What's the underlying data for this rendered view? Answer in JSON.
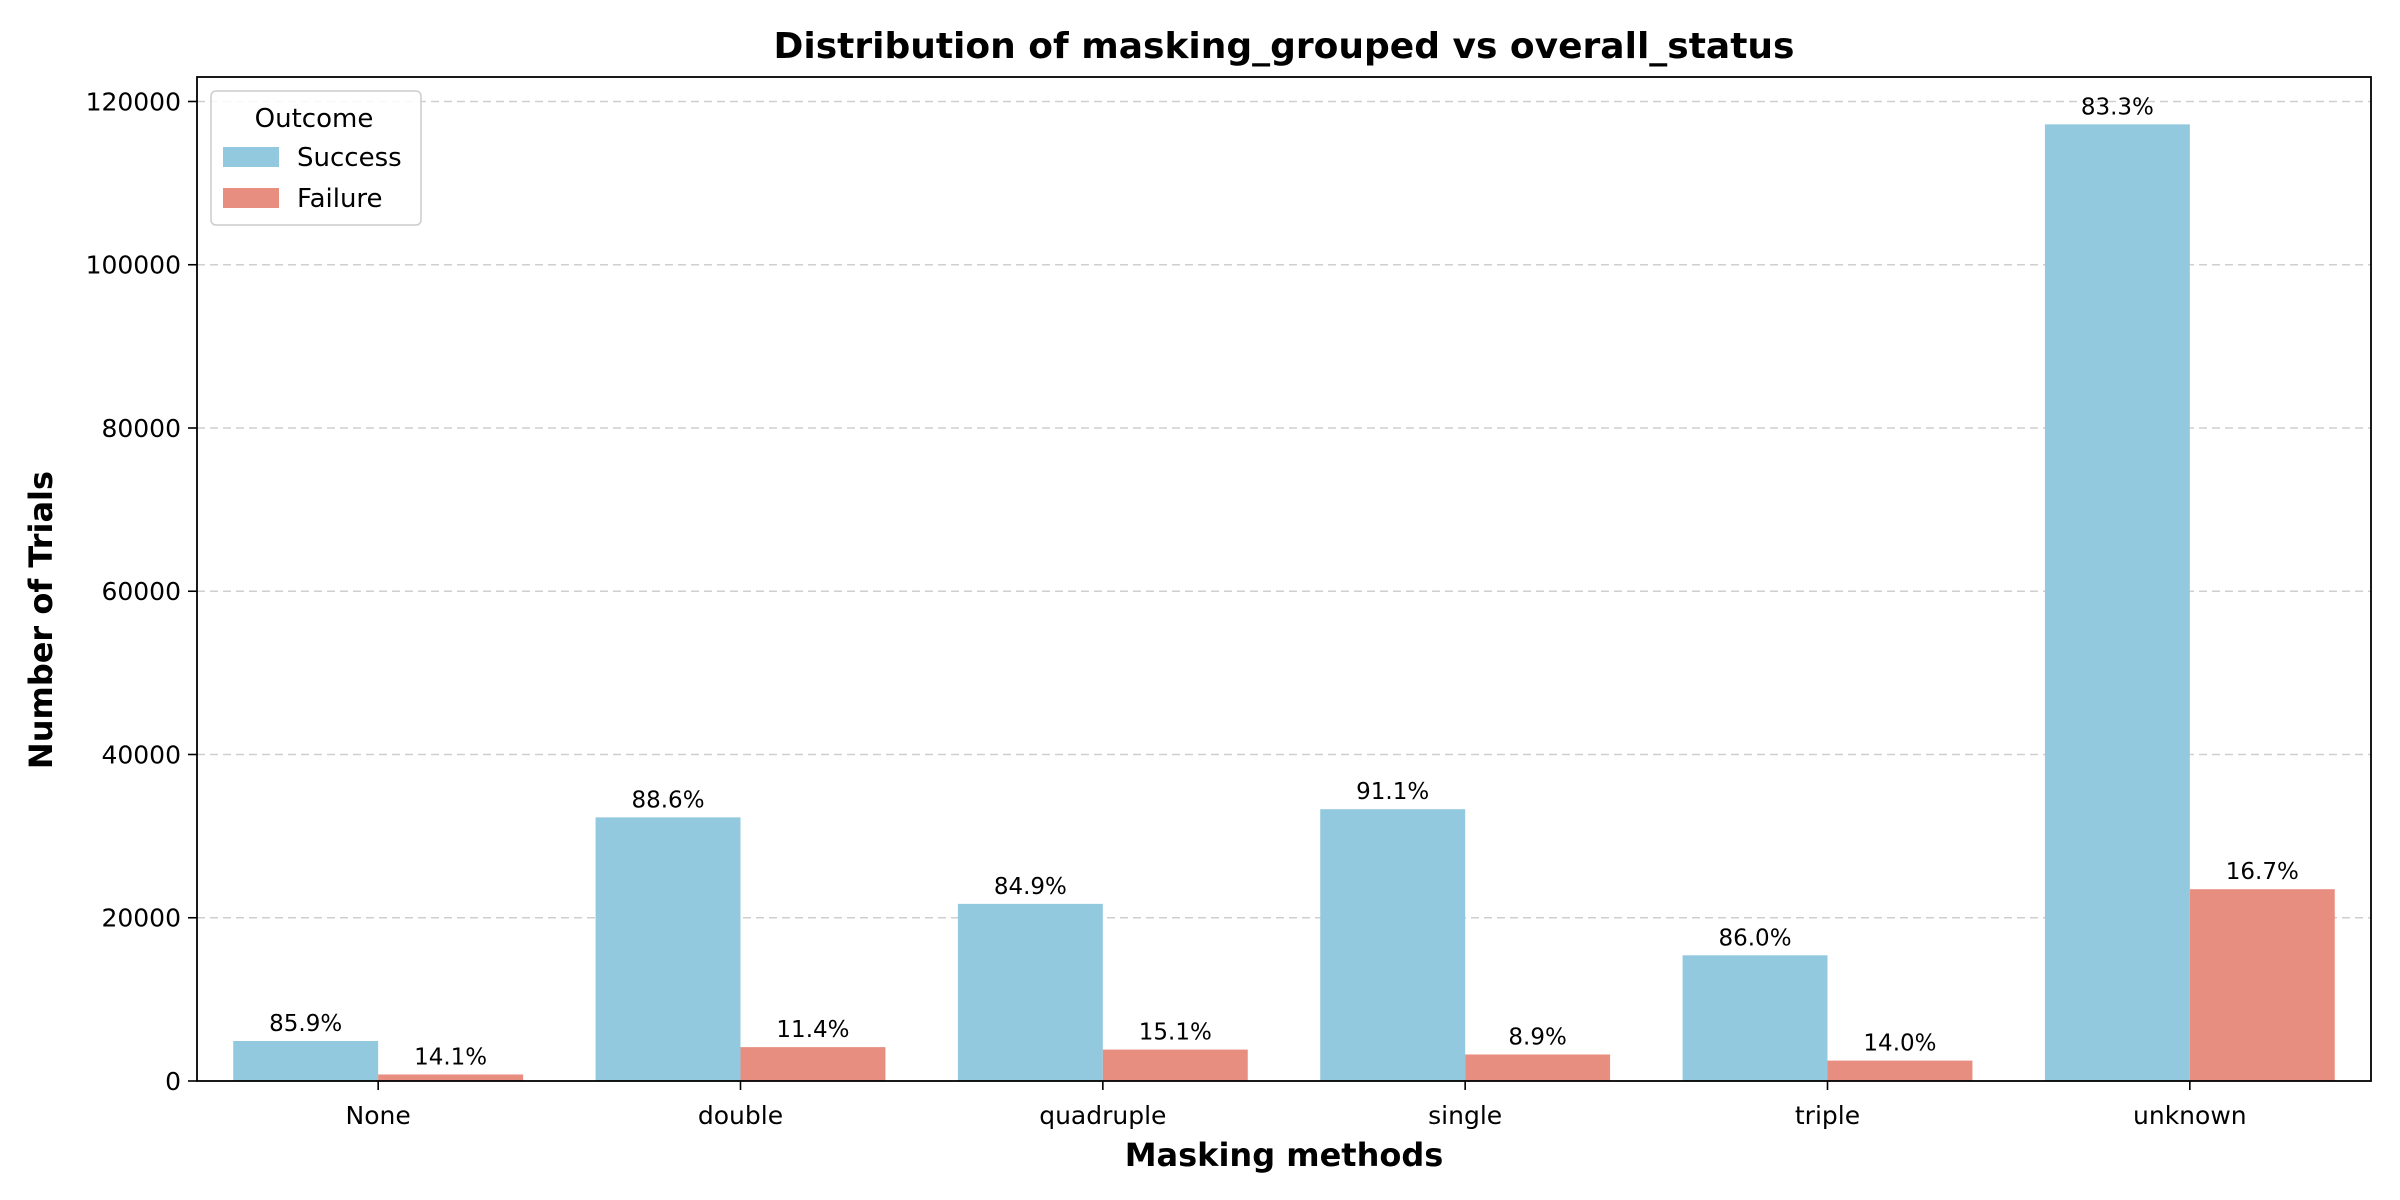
{
  "chart_data": {
    "type": "bar",
    "title": "Distribution of masking_grouped vs overall_status",
    "xlabel": "Masking methods",
    "ylabel": "Number of Trials",
    "categories": [
      "None",
      "double",
      "quadruple",
      "single",
      "triple",
      "unknown"
    ],
    "series": [
      {
        "name": "Success",
        "color": "#92c9df",
        "values": [
          4900,
          32300,
          21700,
          33300,
          15400,
          117200
        ],
        "labels": [
          "85.9%",
          "88.6%",
          "84.9%",
          "91.1%",
          "86.0%",
          "83.3%"
        ]
      },
      {
        "name": "Failure",
        "color": "#e88e81",
        "values": [
          800,
          4150,
          3850,
          3250,
          2500,
          23500
        ],
        "labels": [
          "14.1%",
          "11.4%",
          "15.1%",
          "8.9%",
          "14.0%",
          "16.7%"
        ]
      }
    ],
    "ylim": [
      0,
      123000
    ],
    "yticks": [
      0,
      20000,
      40000,
      60000,
      80000,
      100000,
      120000
    ],
    "ytick_labels": [
      "0",
      "20000",
      "40000",
      "60000",
      "80000",
      "100000",
      "120000"
    ],
    "grid": "y-dashed",
    "legend": {
      "title": "Outcome",
      "placement": "top-left",
      "entries": [
        "Success",
        "Failure"
      ]
    }
  }
}
